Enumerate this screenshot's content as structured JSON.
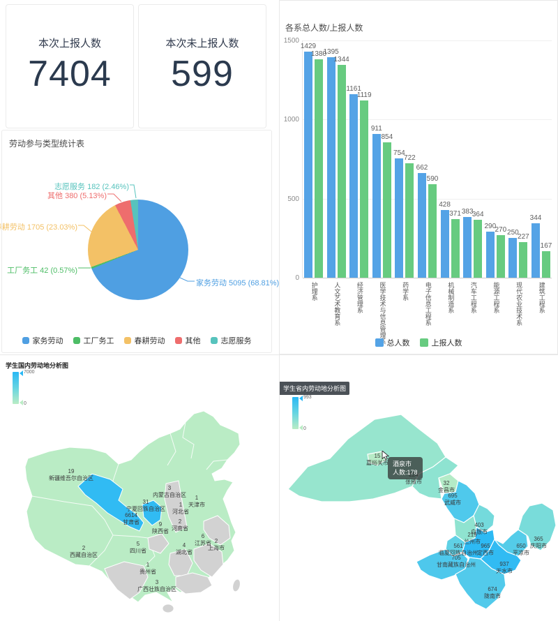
{
  "stats": {
    "reported": {
      "label": "本次上报人数",
      "value": "7404"
    },
    "unreported": {
      "label": "本次未上报人数",
      "value": "599"
    }
  },
  "chart_data": [
    {
      "id": "participation_pie",
      "type": "pie",
      "title": "劳动参与类型统计表",
      "legend_position": "bottom",
      "slices": [
        {
          "name": "家务劳动",
          "value": 5095,
          "pct": 68.81,
          "color": "#4f9fe2"
        },
        {
          "name": "工厂务工",
          "value": 42,
          "pct": 0.57,
          "color": "#4dbd66"
        },
        {
          "name": "春耕劳动",
          "value": 1705,
          "pct": 23.03,
          "color": "#f3c166"
        },
        {
          "name": "其他",
          "value": 380,
          "pct": 5.13,
          "color": "#ee6d6d"
        },
        {
          "name": "志愿服务",
          "value": 182,
          "pct": 2.46,
          "color": "#57c3bd"
        }
      ]
    },
    {
      "id": "department_bar",
      "type": "bar",
      "title": "各系总人数/上报人数",
      "categories": [
        "护理系",
        "人文艺术教育系",
        "经济管理系",
        "医学技术与信息管理系",
        "药学系",
        "电子信息工程系",
        "机械制造系",
        "汽车工程系",
        "能源工程系",
        "现代农业技术系",
        "建筑工程系"
      ],
      "series": [
        {
          "name": "总人数",
          "color": "#54a3e6",
          "values": [
            1429,
            1395,
            1161,
            911,
            754,
            662,
            428,
            383,
            290,
            250,
            344
          ]
        },
        {
          "name": "上报人数",
          "color": "#67cb80",
          "values": [
            1380,
            1344,
            1119,
            854,
            722,
            590,
            371,
            364,
            270,
            227,
            167
          ]
        }
      ],
      "ylim": [
        0,
        1500
      ],
      "yticks": [
        0,
        500,
        1000,
        1500
      ],
      "grid": true,
      "legend_position": "bottom"
    },
    {
      "id": "china_map",
      "type": "heatmap",
      "subtype": "map-china",
      "title": "学生国内劳动地分析图",
      "visual_min": 0,
      "visual_max": 7000,
      "visual_colors": [
        "#baecc5",
        "#2ab8f5"
      ],
      "no_data_color": "#d2d2d2",
      "regions": [
        {
          "name": "新疆维吾尔自治区",
          "value": 19
        },
        {
          "name": "西藏自治区",
          "value": 2
        },
        {
          "name": "内蒙古自治区",
          "value": 3
        },
        {
          "name": "天津市",
          "value": 1
        },
        {
          "name": "河北省",
          "value": 1
        },
        {
          "name": "河南省",
          "value": 2
        },
        {
          "name": "陕西省",
          "value": 9
        },
        {
          "name": "宁夏回族自治区",
          "value": 31
        },
        {
          "name": "甘肃省",
          "value": 6614
        },
        {
          "name": "四川省",
          "value": 5
        },
        {
          "name": "湖北省",
          "value": 4
        },
        {
          "name": "江苏省",
          "value": 6
        },
        {
          "name": "上海市",
          "value": 2
        },
        {
          "name": "贵州省",
          "value": 1
        },
        {
          "name": "广西壮族自治区",
          "value": 3
        }
      ]
    },
    {
      "id": "gansu_map",
      "type": "heatmap",
      "subtype": "map-gansu",
      "title": "学生省内劳动地分析图",
      "visual_min": 0,
      "visual_max": 993,
      "visual_colors": [
        "#baecc5",
        "#2ab8f5"
      ],
      "regions": [
        {
          "name": "酒泉市",
          "value": 178
        },
        {
          "name": "嘉峪关市",
          "value": 15
        },
        {
          "name": "张掖市",
          "value": 224
        },
        {
          "name": "金昌市",
          "value": 32
        },
        {
          "name": "武威市",
          "value": 695
        },
        {
          "name": "白银市",
          "value": 403
        },
        {
          "name": "兰州市",
          "value": 219
        },
        {
          "name": "临夏回族自治州",
          "value": 561
        },
        {
          "name": "甘南藏族自治州",
          "value": 705
        },
        {
          "name": "定西市",
          "value": 965
        },
        {
          "name": "天水市",
          "value": 937
        },
        {
          "name": "陇南市",
          "value": 674
        },
        {
          "name": "平凉市",
          "value": 650
        },
        {
          "name": "庆阳市",
          "value": 365
        }
      ],
      "tooltip": {
        "title": "酒泉市",
        "line": "人数:178"
      }
    }
  ]
}
